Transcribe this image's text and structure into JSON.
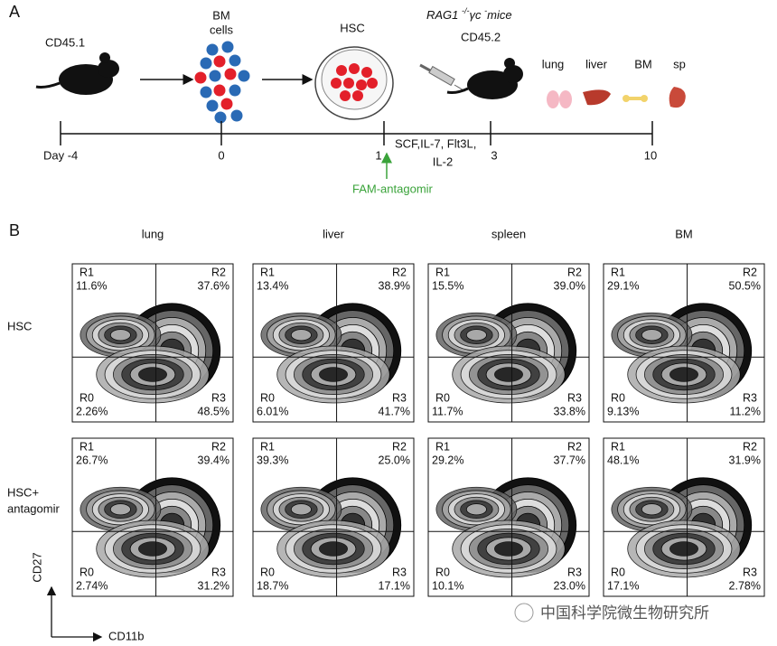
{
  "panel_a": {
    "label": "A",
    "donor": "CD45.1",
    "bm_cells": [
      "BM",
      "cells"
    ],
    "hsc": "HSC",
    "recipient": {
      "strain": "RAG1 ",
      "sup1": "-/-",
      "gc": "γc ",
      "sup2": "-",
      "mice": "mice",
      "marker": "CD45.2"
    },
    "organs": [
      "lung",
      "liver",
      "BM",
      "sp"
    ],
    "timeline": [
      "Day -4",
      "0",
      "1",
      "3",
      "10"
    ],
    "cytokines": [
      "SCF,IL-7, Flt3L,",
      "IL-2"
    ],
    "treatment": "FAM-antagomir"
  },
  "panel_b": {
    "label": "B",
    "columns": [
      "lung",
      "liver",
      "spleen",
      "BM"
    ],
    "gates": [
      "R1",
      "R2",
      "R0",
      "R3"
    ],
    "rows": [
      {
        "label": [
          "HSC"
        ],
        "plots": [
          [
            "11.6%",
            "37.6%",
            "2.26%",
            "48.5%"
          ],
          [
            "13.4%",
            "38.9%",
            "6.01%",
            "41.7%"
          ],
          [
            "15.5%",
            "39.0%",
            "11.7%",
            "33.8%"
          ],
          [
            "29.1%",
            "50.5%",
            "9.13%",
            "11.2%"
          ]
        ]
      },
      {
        "label": [
          "HSC+",
          "antagomir"
        ],
        "plots": [
          [
            "26.7%",
            "39.4%",
            "2.74%",
            "31.2%"
          ],
          [
            "39.3%",
            "25.0%",
            "18.7%",
            "17.1%"
          ],
          [
            "29.2%",
            "37.7%",
            "10.1%",
            "23.0%"
          ],
          [
            "48.1%",
            "31.9%",
            "17.1%",
            "2.78%"
          ]
        ]
      }
    ],
    "y_axis": "CD27",
    "x_axis": "CD11b"
  },
  "watermark": "中国科学院微生物研究所"
}
